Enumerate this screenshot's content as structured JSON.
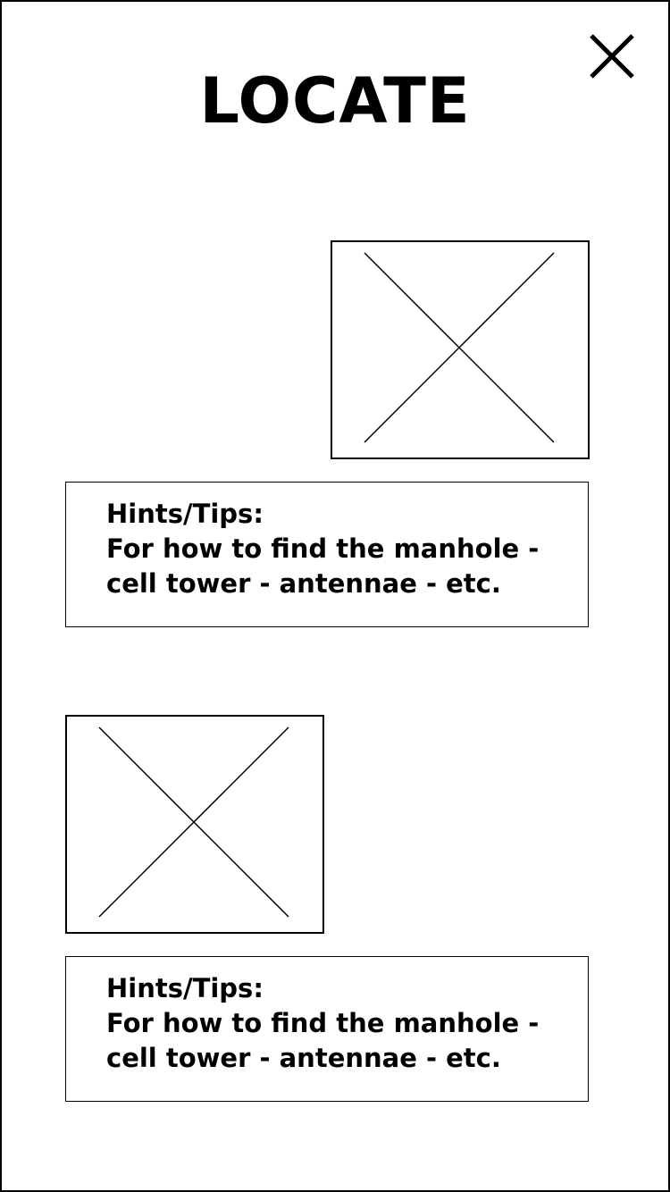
{
  "header": {
    "title": "LOCATE",
    "close_icon": "close-icon"
  },
  "sections": [
    {
      "image_icon": "image-placeholder-icon",
      "hint": {
        "heading": "Hints/Tips:",
        "line1": "For how to find the manhole -",
        "line2": "cell tower - antennae - etc."
      }
    },
    {
      "image_icon": "image-placeholder-icon",
      "hint": {
        "heading": "Hints/Tips:",
        "line1": "For how to find the manhole -",
        "line2": "cell tower - antennae - etc."
      }
    }
  ],
  "colors": {
    "background": "#ffffff",
    "stroke": "#000000"
  }
}
